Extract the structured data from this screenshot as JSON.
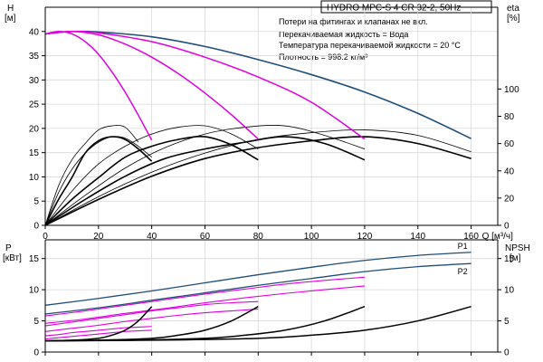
{
  "chart_data": {
    "type": "line",
    "title": "HYDRO MPC-S 4 CR 32-2, 50Hz",
    "notes": [
      "Потери на фитингах и клапанах не вкл.",
      "Перекачиваемая жидкость = Вода",
      "Температура перекачиваемой жидкости = 20 °C",
      "Плотность = 998.2 кг/м³"
    ],
    "top_panel": {
      "left_axis_label": [
        "H",
        "[м]"
      ],
      "right_axis_label": [
        "eta",
        "[%]"
      ],
      "x_label": "Q [м³/ч]",
      "xlim": [
        0,
        170
      ],
      "ylim": [
        0,
        45
      ],
      "x_ticks": [
        0,
        20,
        40,
        60,
        80,
        100,
        120,
        140,
        160
      ],
      "y_ticks": [
        0,
        5,
        10,
        15,
        20,
        25,
        30,
        35,
        40
      ],
      "eta_ticks": [
        0,
        20,
        40,
        60,
        80,
        100
      ],
      "eta_scale_max": 160,
      "grid": true,
      "head_series": [
        {
          "pumps": 4,
          "color": "#1f4e79",
          "x": [
            0,
            10,
            20,
            40,
            60,
            80,
            100,
            120,
            140,
            160
          ],
          "y": [
            39.5,
            40,
            39.9,
            38.9,
            36.9,
            34.2,
            31.1,
            27.5,
            23.1,
            17.9
          ]
        },
        {
          "pumps": 3,
          "color": "#e000e0",
          "x": [
            0,
            10,
            20,
            40,
            60,
            80,
            100,
            120
          ],
          "y": [
            39.5,
            40,
            39.7,
            37.9,
            34.7,
            30.6,
            25.4,
            17.8
          ]
        },
        {
          "pumps": 2,
          "color": "#e000e0",
          "x": [
            0,
            10,
            20,
            30,
            40,
            50,
            60,
            70,
            80
          ],
          "y": [
            39.5,
            40,
            39.3,
            37.4,
            34.7,
            31.3,
            27.3,
            22.8,
            17.8
          ]
        },
        {
          "pumps": 1,
          "color": "#e000e0",
          "x": [
            0,
            5,
            10,
            15,
            20,
            25,
            30,
            35,
            40
          ],
          "y": [
            39.5,
            40,
            39.5,
            37.9,
            35.3,
            31.7,
            27.5,
            22.7,
            17.6
          ]
        }
      ],
      "eta_series": [
        {
          "pumps": 1,
          "color": "#000000",
          "x": [
            0,
            5,
            10,
            15,
            20,
            25,
            30,
            35,
            40
          ],
          "eta": [
            0,
            19,
            35,
            53,
            62,
            65,
            63,
            56,
            47
          ]
        },
        {
          "pumps": 2,
          "color": "#000000",
          "x": [
            0,
            10,
            20,
            30,
            40,
            50,
            60,
            70,
            80
          ],
          "eta": [
            0,
            19,
            35,
            50,
            58,
            63,
            65,
            59,
            48
          ]
        },
        {
          "pumps": 3,
          "color": "#000000",
          "x": [
            0,
            15,
            30,
            45,
            60,
            75,
            90,
            105,
            120
          ],
          "eta": [
            0,
            19,
            36,
            49,
            56,
            61,
            65,
            60,
            48
          ]
        },
        {
          "pumps": 4,
          "color": "#000000",
          "x": [
            0,
            20,
            40,
            60,
            80,
            100,
            120,
            140,
            160
          ],
          "eta": [
            0,
            19,
            36,
            49,
            57,
            62,
            65,
            60,
            49
          ]
        },
        {
          "pumps": 1,
          "color": "#000000",
          "x": [
            0,
            5,
            10,
            15,
            20,
            25,
            30,
            35
          ],
          "eta": [
            0,
            29,
            48,
            60,
            70,
            73,
            72,
            61
          ]
        },
        {
          "pumps": 1,
          "color": "#000000",
          "x": [
            0,
            5,
            10,
            15,
            20,
            25,
            30,
            35,
            40
          ],
          "eta": [
            0,
            24,
            41,
            53,
            61,
            65,
            64,
            58,
            50
          ]
        },
        {
          "pumps": 2,
          "color": "#000000",
          "x": [
            0,
            10,
            20,
            30,
            40,
            50,
            60,
            70,
            80
          ],
          "eta": [
            0,
            25,
            45,
            58,
            67,
            72,
            73,
            67,
            56
          ]
        },
        {
          "pumps": 3,
          "color": "#000000",
          "x": [
            0,
            15,
            30,
            45,
            60,
            75,
            90,
            105,
            120
          ],
          "eta": [
            0,
            22,
            42,
            57,
            67,
            72,
            73,
            66,
            56
          ]
        },
        {
          "pumps": 4,
          "color": "#000000",
          "x": [
            0,
            20,
            40,
            60,
            80,
            100,
            120,
            140,
            160
          ],
          "eta": [
            0,
            21,
            39,
            53,
            63,
            68,
            70,
            66,
            54
          ]
        }
      ]
    },
    "bottom_panel": {
      "left_axis_label": [
        "P",
        "[кВт]"
      ],
      "right_axis_label": [
        "NPSH",
        "[м]"
      ],
      "xlim": [
        0,
        170
      ],
      "ylim": [
        0,
        18
      ],
      "y_ticks": [
        0,
        5,
        10,
        15
      ],
      "npsh_ticks": [
        0,
        5,
        10,
        15
      ],
      "npsh_scale_max": 18,
      "grid": true,
      "power_series": [
        {
          "name": "P1",
          "color": "#1f4e79",
          "x": [
            0,
            20,
            40,
            60,
            80,
            100,
            120,
            140,
            160
          ],
          "y": [
            7.5,
            8.6,
            9.8,
            11.1,
            12.4,
            13.6,
            14.7,
            15.5,
            16.0
          ]
        },
        {
          "name": "P2",
          "color": "#1f4e79",
          "x": [
            0,
            20,
            40,
            60,
            80,
            100,
            120,
            140,
            160
          ],
          "y": [
            6.1,
            7.1,
            8.3,
            9.5,
            10.7,
            11.8,
            12.9,
            13.7,
            14.2
          ]
        },
        {
          "color": "#e000e0",
          "x": [
            0,
            15,
            30,
            45,
            60,
            75,
            90,
            105,
            120
          ],
          "y": [
            5.8,
            6.6,
            7.5,
            8.4,
            9.3,
            10.1,
            10.9,
            11.5,
            12.0
          ]
        },
        {
          "color": "#e000e0",
          "x": [
            0,
            15,
            30,
            45,
            60,
            75,
            90,
            105,
            120
          ],
          "y": [
            4.6,
            5.3,
            6.2,
            7.0,
            7.9,
            8.7,
            9.4,
            10.0,
            10.6
          ]
        },
        {
          "color": "#e000e0",
          "x": [
            0,
            10,
            20,
            30,
            40,
            50,
            60,
            70,
            80
          ],
          "y": [
            4.2,
            4.8,
            5.4,
            6.0,
            6.6,
            7.1,
            7.6,
            7.9,
            8.1
          ]
        },
        {
          "color": "#e000e0",
          "x": [
            0,
            10,
            20,
            30,
            40,
            50,
            60,
            70,
            80
          ],
          "y": [
            3.3,
            3.8,
            4.3,
            4.9,
            5.4,
            5.9,
            6.3,
            6.6,
            6.9
          ]
        },
        {
          "color": "#e000e0",
          "x": [
            0,
            5,
            10,
            15,
            20,
            25,
            30,
            35,
            40
          ],
          "y": [
            2.6,
            2.8,
            3.1,
            3.3,
            3.5,
            3.7,
            3.9,
            4.0,
            4.1
          ]
        },
        {
          "color": "#e000e0",
          "x": [
            0,
            5,
            10,
            15,
            20,
            25,
            30,
            35,
            40
          ],
          "y": [
            2.1,
            2.3,
            2.5,
            2.7,
            2.9,
            3.1,
            3.3,
            3.4,
            3.5
          ]
        }
      ],
      "npsh_series": [
        {
          "pumps": 1,
          "color": "#000000",
          "x": [
            0,
            10,
            20,
            25,
            30,
            35,
            40
          ],
          "y": [
            1.8,
            1.9,
            2.2,
            2.7,
            3.5,
            5.0,
            7.3
          ]
        },
        {
          "pumps": 2,
          "color": "#000000",
          "x": [
            0,
            20,
            40,
            50,
            60,
            70,
            80
          ],
          "y": [
            1.8,
            1.9,
            2.2,
            2.7,
            3.5,
            5.0,
            7.3
          ]
        },
        {
          "pumps": 3,
          "color": "#000000",
          "x": [
            0,
            30,
            60,
            75,
            90,
            105,
            120
          ],
          "y": [
            1.8,
            1.9,
            2.2,
            2.7,
            3.5,
            5.0,
            7.3
          ]
        },
        {
          "pumps": 4,
          "color": "#000000",
          "x": [
            0,
            40,
            80,
            100,
            120,
            140,
            160
          ],
          "y": [
            1.8,
            1.9,
            2.2,
            2.7,
            3.5,
            5.0,
            7.3
          ]
        }
      ]
    }
  }
}
